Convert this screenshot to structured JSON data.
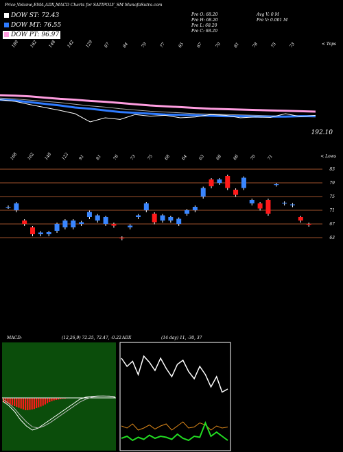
{
  "header": {
    "title": "Price,Volume,EMA,ADX,MACD Charts for SATIPOLY_SM MunafaSutra.com",
    "ohlc": {
      "open": "Pre O: 68.20",
      "high": "Pre H: 68.20",
      "low": "Pre L: 68.20",
      "close": "Pre C: 68.20"
    },
    "volume": {
      "avg": "Avg V: 0 M",
      "prev": "Pre V: 0.001 M"
    }
  },
  "legend": [
    {
      "label": "DOW ST: 72.43",
      "swatch": "#ffffff",
      "bg": "#000000",
      "color": "#ffffff"
    },
    {
      "label": "DOW MT: 76.55",
      "swatch": "#2e7bff",
      "bg": "#000000",
      "color": "#ffffff"
    },
    {
      "label": "DOW PT: 96.97",
      "swatch": "#ff9de0",
      "bg": "#ffffff",
      "color": "#000000"
    }
  ],
  "colors": {
    "up": "#3a86ff",
    "down": "#ff1a1a",
    "grid": "#a0522d",
    "ema_long": "#ff9de0",
    "ema_mid": "#2e7bff",
    "adx_plus": "#22dd22",
    "adx_minus": "#e08a1a"
  },
  "chart_data": [
    {
      "type": "line",
      "name": "ema-panel",
      "top_value_label": "192.10",
      "tick_labels_top": [
        "180",
        "162",
        "148",
        "142",
        "129",
        "87",
        "84",
        "79",
        "77",
        "65",
        "67",
        "70",
        "81",
        "78",
        "75",
        "73",
        "< Tops"
      ],
      "ylim": [
        0,
        1
      ],
      "series": [
        {
          "values": [
            0.85,
            0.84,
            0.82,
            0.79,
            0.76,
            0.74,
            0.71,
            0.69,
            0.66,
            0.63,
            0.6,
            0.58,
            0.56,
            0.54,
            0.52,
            0.51,
            0.5,
            0.49,
            0.48,
            0.47,
            0.46,
            0.45
          ]
        },
        {
          "values": [
            0.78,
            0.76,
            0.73,
            0.7,
            0.67,
            0.63,
            0.59,
            0.56,
            0.52,
            0.49,
            0.46,
            0.44,
            0.42,
            0.4,
            0.39,
            0.38,
            0.37,
            0.36,
            0.35,
            0.34,
            0.33,
            0.32
          ]
        },
        {
          "values": [
            0.74,
            0.72,
            0.68,
            0.64,
            0.6,
            0.55,
            0.52,
            0.48,
            0.44,
            0.42,
            0.4,
            0.38,
            0.37,
            0.36,
            0.35,
            0.34,
            0.34,
            0.33,
            0.33,
            0.33,
            0.34,
            0.34
          ]
        },
        {
          "values": [
            0.74,
            0.7,
            0.62,
            0.55,
            0.48,
            0.4,
            0.2,
            0.3,
            0.26,
            0.38,
            0.34,
            0.36,
            0.3,
            0.32,
            0.38,
            0.36,
            0.3,
            0.32,
            0.31,
            0.4,
            0.33,
            0.36
          ]
        }
      ]
    },
    {
      "type": "candlestick",
      "name": "price-panel",
      "tick_labels_top": [
        "168",
        "162",
        "148",
        "122",
        "91",
        "81",
        "76",
        "73",
        "75",
        "68",
        "64",
        "63",
        "68",
        "66",
        "70",
        "71",
        "< Lows"
      ],
      "right_axis": [
        83,
        79,
        75,
        71,
        67,
        63
      ],
      "ylim": [
        61,
        85
      ],
      "candles": [
        {
          "o": 72.0,
          "c": 72.0
        },
        {
          "o": 71.0,
          "c": 73.0
        },
        {
          "o": 68.0,
          "c": 67.0
        },
        {
          "o": 66.0,
          "c": 64.0
        },
        {
          "o": 64.0,
          "c": 64.5
        },
        {
          "o": 64.0,
          "c": 64.6
        },
        {
          "o": 65.0,
          "c": 67.0
        },
        {
          "o": 66.0,
          "c": 68.0
        },
        {
          "o": 66.0,
          "c": 68.0
        },
        {
          "o": 67.0,
          "c": 67.5
        },
        {
          "o": 69.0,
          "c": 70.5
        },
        {
          "o": 68.0,
          "c": 69.5
        },
        {
          "o": 67.0,
          "c": 69.0
        },
        {
          "o": 67.0,
          "c": 66.5
        },
        {
          "o": 63.0,
          "c": 62.8
        },
        {
          "o": 66.0,
          "c": 66.5
        },
        {
          "o": 69.0,
          "c": 69.5
        },
        {
          "o": 71.0,
          "c": 73.0
        },
        {
          "o": 70.0,
          "c": 67.5
        },
        {
          "o": 68.0,
          "c": 69.5
        },
        {
          "o": 68.0,
          "c": 69.0
        },
        {
          "o": 67.0,
          "c": 68.5
        },
        {
          "o": 70.0,
          "c": 71.0
        },
        {
          "o": 71.0,
          "c": 72.0
        },
        {
          "o": 75.0,
          "c": 77.5
        },
        {
          "o": 80.0,
          "c": 78.0
        },
        {
          "o": 79.0,
          "c": 80.0
        },
        {
          "o": 81.0,
          "c": 77.5
        },
        {
          "o": 77.0,
          "c": 75.5
        },
        {
          "o": 77.5,
          "c": 80.5
        },
        {
          "o": 73.0,
          "c": 74.0
        },
        {
          "o": 73.0,
          "c": 71.5
        },
        {
          "o": 74.0,
          "c": 70.0
        },
        {
          "o": 78.5,
          "c": 78.6
        },
        {
          "o": 73.0,
          "c": 73.2
        },
        {
          "o": 72.5,
          "c": 72.7
        },
        {
          "o": 69.0,
          "c": 68.0
        },
        {
          "o": 67.0,
          "c": 66.8
        }
      ]
    },
    {
      "type": "line",
      "name": "macd-panel",
      "title": "MACD:",
      "values_label": "(12,26,9) 72.25, 72.47, -0.22",
      "ylim": [
        -1,
        1
      ],
      "histogram": [
        -0.1,
        -0.12,
        -0.14,
        -0.16,
        -0.18,
        -0.2,
        -0.22,
        -0.24,
        -0.26,
        -0.28,
        -0.3,
        -0.3,
        -0.29,
        -0.28,
        -0.27,
        -0.25,
        -0.23,
        -0.21,
        -0.19,
        -0.16,
        -0.13,
        -0.1,
        -0.08,
        -0.06,
        -0.05,
        -0.04,
        -0.03,
        -0.02,
        -0.02,
        -0.01
      ],
      "series": [
        {
          "values": [
            -0.1,
            -0.2,
            -0.35,
            -0.55,
            -0.7,
            -0.8,
            -0.75,
            -0.65,
            -0.55,
            -0.45,
            -0.35,
            -0.25,
            -0.15,
            -0.05,
            0.0,
            0.02,
            0.03,
            0.03,
            0.02,
            0.0
          ]
        },
        {
          "values": [
            -0.05,
            -0.15,
            -0.28,
            -0.45,
            -0.6,
            -0.72,
            -0.75,
            -0.7,
            -0.62,
            -0.52,
            -0.42,
            -0.32,
            -0.22,
            -0.12,
            -0.05,
            0.0,
            0.02,
            0.03,
            0.03,
            0.01
          ]
        }
      ]
    },
    {
      "type": "line",
      "name": "adx-panel",
      "title": "ADX",
      "values_label": "(14 day) 11, -30, 37",
      "ylim": [
        0,
        100
      ],
      "series": [
        {
          "values": [
            88,
            80,
            85,
            72,
            90,
            84,
            76,
            88,
            78,
            70,
            82,
            86,
            75,
            68,
            80,
            72,
            60,
            70,
            55,
            58
          ]
        },
        {
          "values": [
            22,
            20,
            24,
            18,
            20,
            23,
            19,
            22,
            24,
            18,
            22,
            26,
            20,
            21,
            25,
            23,
            18,
            22,
            20,
            21
          ]
        },
        {
          "values": [
            10,
            12,
            8,
            11,
            9,
            13,
            10,
            12,
            11,
            9,
            14,
            10,
            8,
            12,
            11,
            25,
            12,
            16,
            12,
            8
          ]
        }
      ]
    }
  ]
}
